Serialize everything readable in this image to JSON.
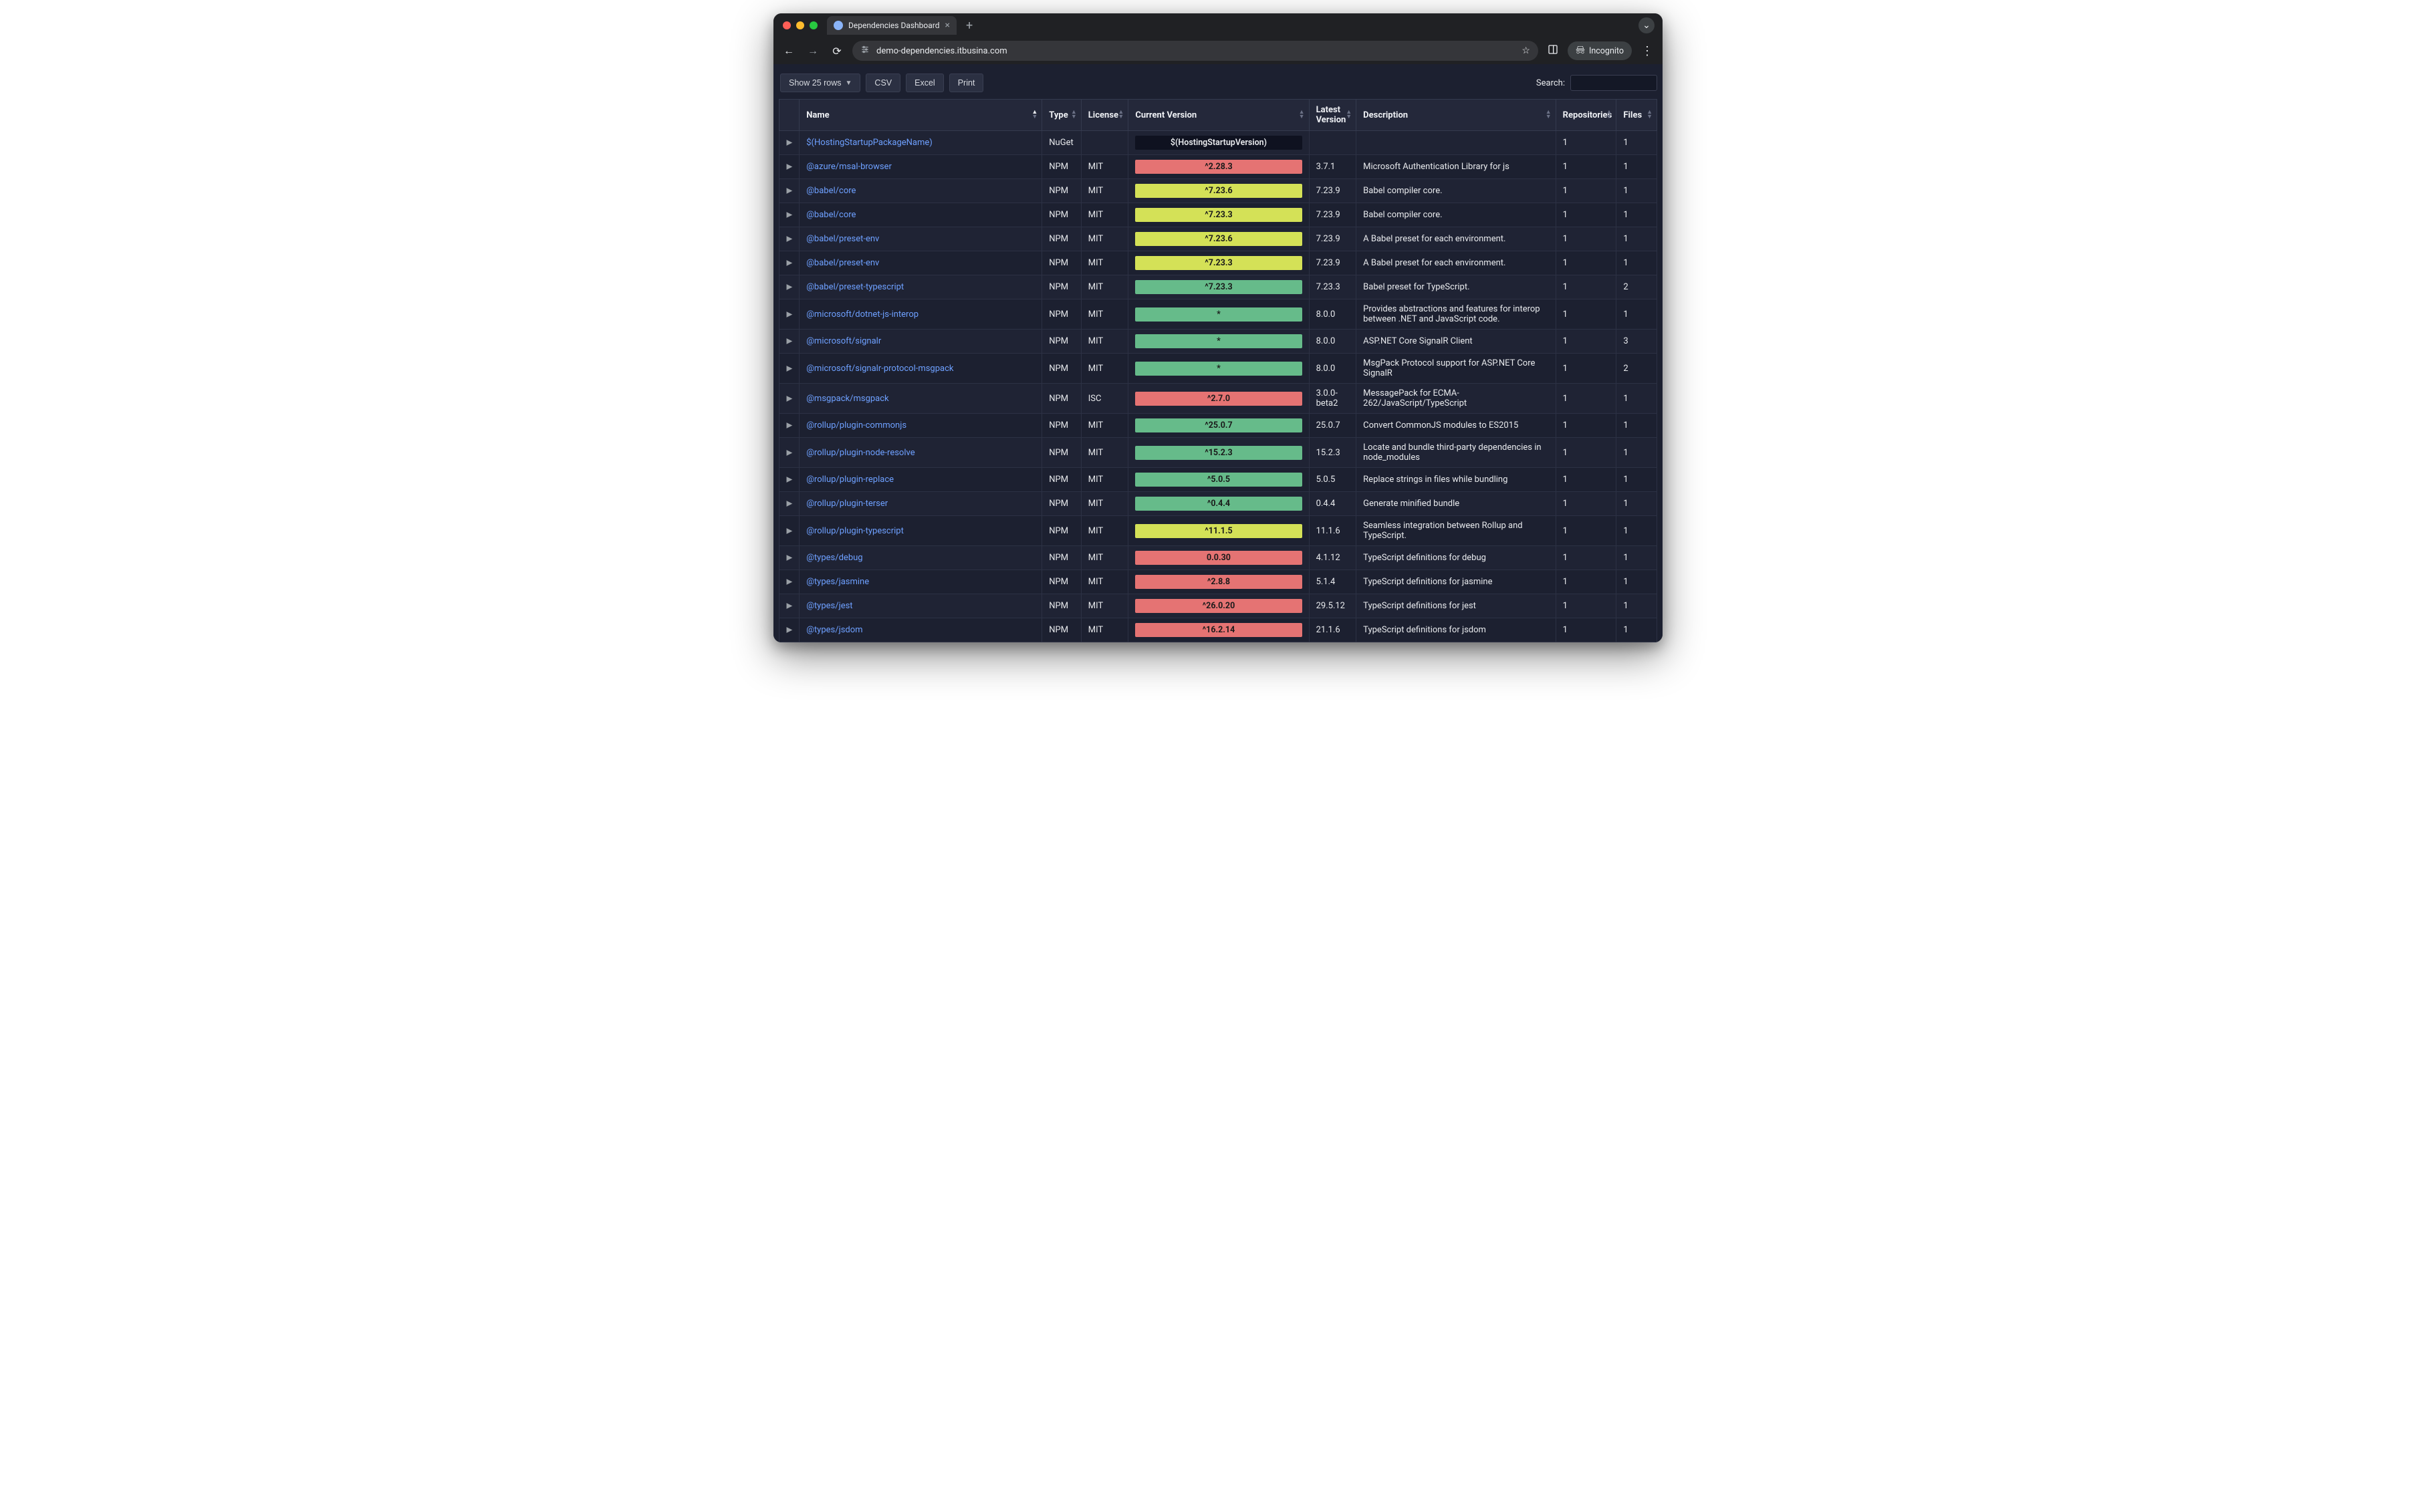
{
  "browser": {
    "tab_title": "Dependencies Dashboard",
    "url_host": "demo-dependencies.itbusina.com",
    "incognito_label": "Incognito"
  },
  "colors": {
    "page_bg": "#1c2030",
    "header_bg": "#24283a",
    "row_odd": "#1f2334",
    "row_even": "#1c2030",
    "border": "#2c3144",
    "link": "#6ea0ff",
    "pill_red": "#e57373",
    "pill_yellow": "#d4e157",
    "pill_green": "#66bb8a",
    "pill_none_bg": "#0f1220"
  },
  "controls": {
    "show_rows_label": "Show 25 rows",
    "csv": "CSV",
    "excel": "Excel",
    "print": "Print",
    "search_label": "Search:"
  },
  "columns": [
    {
      "key": "name",
      "label": "Name",
      "sorted": "asc"
    },
    {
      "key": "type",
      "label": "Type"
    },
    {
      "key": "license",
      "label": "License"
    },
    {
      "key": "current",
      "label": "Current Version"
    },
    {
      "key": "latest",
      "label": "Latest Version"
    },
    {
      "key": "description",
      "label": "Description"
    },
    {
      "key": "repositories",
      "label": "Repositories"
    },
    {
      "key": "files",
      "label": "Files"
    }
  ],
  "rows": [
    {
      "name": "$(HostingStartupPackageName)",
      "type": "NuGet",
      "license": "",
      "current": "$(HostingStartupVersion)",
      "current_status": "none",
      "latest": "",
      "description": "",
      "repositories": "1",
      "files": "1"
    },
    {
      "name": "@azure/msal-browser",
      "type": "NPM",
      "license": "MIT",
      "current": "^2.28.3",
      "current_status": "red",
      "latest": "3.7.1",
      "description": "Microsoft Authentication Library for js",
      "repositories": "1",
      "files": "1"
    },
    {
      "name": "@babel/core",
      "type": "NPM",
      "license": "MIT",
      "current": "^7.23.6",
      "current_status": "yellow",
      "latest": "7.23.9",
      "description": "Babel compiler core.",
      "repositories": "1",
      "files": "1"
    },
    {
      "name": "@babel/core",
      "type": "NPM",
      "license": "MIT",
      "current": "^7.23.3",
      "current_status": "yellow",
      "latest": "7.23.9",
      "description": "Babel compiler core.",
      "repositories": "1",
      "files": "1"
    },
    {
      "name": "@babel/preset-env",
      "type": "NPM",
      "license": "MIT",
      "current": "^7.23.6",
      "current_status": "yellow",
      "latest": "7.23.9",
      "description": "A Babel preset for each environment.",
      "repositories": "1",
      "files": "1"
    },
    {
      "name": "@babel/preset-env",
      "type": "NPM",
      "license": "MIT",
      "current": "^7.23.3",
      "current_status": "yellow",
      "latest": "7.23.9",
      "description": "A Babel preset for each environment.",
      "repositories": "1",
      "files": "1"
    },
    {
      "name": "@babel/preset-typescript",
      "type": "NPM",
      "license": "MIT",
      "current": "^7.23.3",
      "current_status": "green",
      "latest": "7.23.3",
      "description": "Babel preset for TypeScript.",
      "repositories": "1",
      "files": "2"
    },
    {
      "name": "@microsoft/dotnet-js-interop",
      "type": "NPM",
      "license": "MIT",
      "current": "*",
      "current_status": "green",
      "latest": "8.0.0",
      "description": "Provides abstractions and features for interop between .NET and JavaScript code.",
      "repositories": "1",
      "files": "1"
    },
    {
      "name": "@microsoft/signalr",
      "type": "NPM",
      "license": "MIT",
      "current": "*",
      "current_status": "green",
      "latest": "8.0.0",
      "description": "ASP.NET Core SignalR Client",
      "repositories": "1",
      "files": "3"
    },
    {
      "name": "@microsoft/signalr-protocol-msgpack",
      "type": "NPM",
      "license": "MIT",
      "current": "*",
      "current_status": "green",
      "latest": "8.0.0",
      "description": "MsgPack Protocol support for ASP.NET Core SignalR",
      "repositories": "1",
      "files": "2"
    },
    {
      "name": "@msgpack/msgpack",
      "type": "NPM",
      "license": "ISC",
      "current": "^2.7.0",
      "current_status": "red",
      "latest": "3.0.0-beta2",
      "description": "MessagePack for ECMA-262/JavaScript/TypeScript",
      "repositories": "1",
      "files": "1"
    },
    {
      "name": "@rollup/plugin-commonjs",
      "type": "NPM",
      "license": "MIT",
      "current": "^25.0.7",
      "current_status": "green",
      "latest": "25.0.7",
      "description": "Convert CommonJS modules to ES2015",
      "repositories": "1",
      "files": "1"
    },
    {
      "name": "@rollup/plugin-node-resolve",
      "type": "NPM",
      "license": "MIT",
      "current": "^15.2.3",
      "current_status": "green",
      "latest": "15.2.3",
      "description": "Locate and bundle third-party dependencies in node_modules",
      "repositories": "1",
      "files": "1"
    },
    {
      "name": "@rollup/plugin-replace",
      "type": "NPM",
      "license": "MIT",
      "current": "^5.0.5",
      "current_status": "green",
      "latest": "5.0.5",
      "description": "Replace strings in files while bundling",
      "repositories": "1",
      "files": "1"
    },
    {
      "name": "@rollup/plugin-terser",
      "type": "NPM",
      "license": "MIT",
      "current": "^0.4.4",
      "current_status": "green",
      "latest": "0.4.4",
      "description": "Generate minified bundle",
      "repositories": "1",
      "files": "1"
    },
    {
      "name": "@rollup/plugin-typescript",
      "type": "NPM",
      "license": "MIT",
      "current": "^11.1.5",
      "current_status": "yellow",
      "latest": "11.1.6",
      "description": "Seamless integration between Rollup and TypeScript.",
      "repositories": "1",
      "files": "1"
    },
    {
      "name": "@types/debug",
      "type": "NPM",
      "license": "MIT",
      "current": "0.0.30",
      "current_status": "red",
      "latest": "4.1.12",
      "description": "TypeScript definitions for debug",
      "repositories": "1",
      "files": "1"
    },
    {
      "name": "@types/jasmine",
      "type": "NPM",
      "license": "MIT",
      "current": "^2.8.8",
      "current_status": "red",
      "latest": "5.1.4",
      "description": "TypeScript definitions for jasmine",
      "repositories": "1",
      "files": "1"
    },
    {
      "name": "@types/jest",
      "type": "NPM",
      "license": "MIT",
      "current": "^26.0.20",
      "current_status": "red",
      "latest": "29.5.12",
      "description": "TypeScript definitions for jest",
      "repositories": "1",
      "files": "1"
    },
    {
      "name": "@types/jsdom",
      "type": "NPM",
      "license": "MIT",
      "current": "^16.2.14",
      "current_status": "red",
      "latest": "21.1.6",
      "description": "TypeScript definitions for jsdom",
      "repositories": "1",
      "files": "1"
    }
  ]
}
